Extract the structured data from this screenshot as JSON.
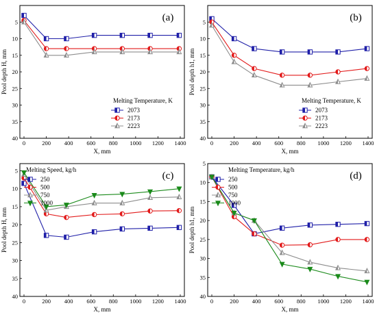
{
  "chart_data": [
    {
      "type": "line",
      "panel_label": "(a)",
      "xlabel": "X, mm",
      "ylabel": "Pool depth H, mm",
      "xlim": [
        0,
        1400
      ],
      "ylim": [
        0,
        40
      ],
      "y_inverted": true,
      "xticks": [
        0,
        200,
        400,
        600,
        800,
        1000,
        1200,
        1400
      ],
      "yticks": [
        5,
        10,
        15,
        20,
        25,
        30,
        35,
        40
      ],
      "legend": {
        "title": "Melting Temperature, K",
        "placement": "center-right"
      },
      "x": [
        0,
        200,
        380,
        630,
        880,
        1130,
        1390
      ],
      "series": [
        {
          "name": "2073",
          "color": "#1f1fa8",
          "marker": "half-square",
          "values": [
            3,
            10,
            10,
            9,
            9,
            9,
            9
          ]
        },
        {
          "name": "2173",
          "color": "#e21a1a",
          "marker": "half-circle",
          "values": [
            4.5,
            13,
            13,
            13,
            13,
            13,
            13
          ]
        },
        {
          "name": "2223",
          "color": "#8c8c8c",
          "marker": "triangle-up",
          "values": [
            5,
            15,
            15,
            14,
            14,
            14,
            14
          ]
        }
      ]
    },
    {
      "type": "line",
      "panel_label": "(b)",
      "xlabel": "X, mm",
      "ylabel": "Pool depth h1, mm",
      "xlim": [
        0,
        1400
      ],
      "ylim": [
        0,
        40
      ],
      "y_inverted": true,
      "xticks": [
        0,
        200,
        400,
        600,
        800,
        1000,
        1200,
        1400
      ],
      "yticks": [
        5,
        10,
        15,
        20,
        25,
        30,
        35,
        40
      ],
      "legend": {
        "title": "Melting Temperature, K",
        "placement": "center-right"
      },
      "x": [
        0,
        200,
        380,
        630,
        880,
        1130,
        1390
      ],
      "series": [
        {
          "name": "2073",
          "color": "#1f1fa8",
          "marker": "half-square",
          "values": [
            4,
            10,
            13,
            14,
            14,
            14,
            13
          ]
        },
        {
          "name": "2173",
          "color": "#e21a1a",
          "marker": "half-circle",
          "values": [
            5,
            15,
            19,
            21,
            21,
            20,
            19
          ]
        },
        {
          "name": "2223",
          "color": "#8c8c8c",
          "marker": "triangle-up",
          "values": [
            6,
            17,
            21,
            24,
            24,
            23,
            22
          ]
        }
      ]
    },
    {
      "type": "line",
      "panel_label": "(c)",
      "xlabel": "X, mm",
      "ylabel": "Pool depth H, mm",
      "xlim": [
        0,
        1400
      ],
      "ylim": [
        3,
        40
      ],
      "y_inverted": true,
      "xticks": [
        0,
        200,
        400,
        600,
        800,
        1000,
        1200,
        1400
      ],
      "yticks": [
        5,
        10,
        15,
        20,
        25,
        30,
        35,
        40
      ],
      "legend": {
        "title": "Melting Speed, kg/h",
        "placement": "top-left"
      },
      "x": [
        0,
        200,
        380,
        630,
        880,
        1130,
        1390
      ],
      "series": [
        {
          "name": "250",
          "color": "#1f1fa8",
          "marker": "half-square",
          "values": [
            8.5,
            23,
            23.5,
            22,
            21.2,
            21,
            20.8
          ]
        },
        {
          "name": "500",
          "color": "#e21a1a",
          "marker": "half-circle",
          "values": [
            7,
            17,
            18,
            17.2,
            17,
            16.2,
            16.1
          ]
        },
        {
          "name": "750",
          "color": "#8c8c8c",
          "marker": "triangle-up",
          "values": [
            6,
            16,
            15,
            14,
            14,
            12.5,
            12.3
          ]
        },
        {
          "name": "1000",
          "color": "#1a8a1a",
          "marker": "triangle-down",
          "values": [
            5.5,
            15,
            14.5,
            11.8,
            11.5,
            10.8,
            10
          ]
        }
      ]
    },
    {
      "type": "line",
      "panel_label": "(d)",
      "xlabel": "X, mm",
      "ylabel": "Pool depth h1, mm",
      "xlim": [
        0,
        1400
      ],
      "ylim": [
        5,
        40
      ],
      "y_inverted": true,
      "xticks": [
        0,
        200,
        400,
        600,
        800,
        1000,
        1200,
        1400
      ],
      "yticks": [
        5,
        10,
        15,
        20,
        25,
        30,
        35,
        40
      ],
      "legend": {
        "title": "Melting Temperature, kg/h",
        "placement": "top-left"
      },
      "x": [
        0,
        200,
        380,
        630,
        880,
        1130,
        1390
      ],
      "series": [
        {
          "name": "250",
          "color": "#1f1fa8",
          "marker": "half-square",
          "values": [
            8.5,
            16,
            23.5,
            22,
            21.2,
            21,
            20.8
          ]
        },
        {
          "name": "500",
          "color": "#e21a1a",
          "marker": "half-circle",
          "values": [
            8.5,
            19,
            23.5,
            26.5,
            26.4,
            25,
            25
          ]
        },
        {
          "name": "750",
          "color": "#8c8c8c",
          "marker": "triangle-up",
          "values": [
            8.5,
            18,
            20,
            28.5,
            31,
            32.5,
            33.3
          ]
        },
        {
          "name": "1000",
          "color": "#1a8a1a",
          "marker": "triangle-down",
          "values": [
            8.5,
            18,
            20,
            31.5,
            32.8,
            34.7,
            36.2
          ]
        }
      ]
    }
  ]
}
